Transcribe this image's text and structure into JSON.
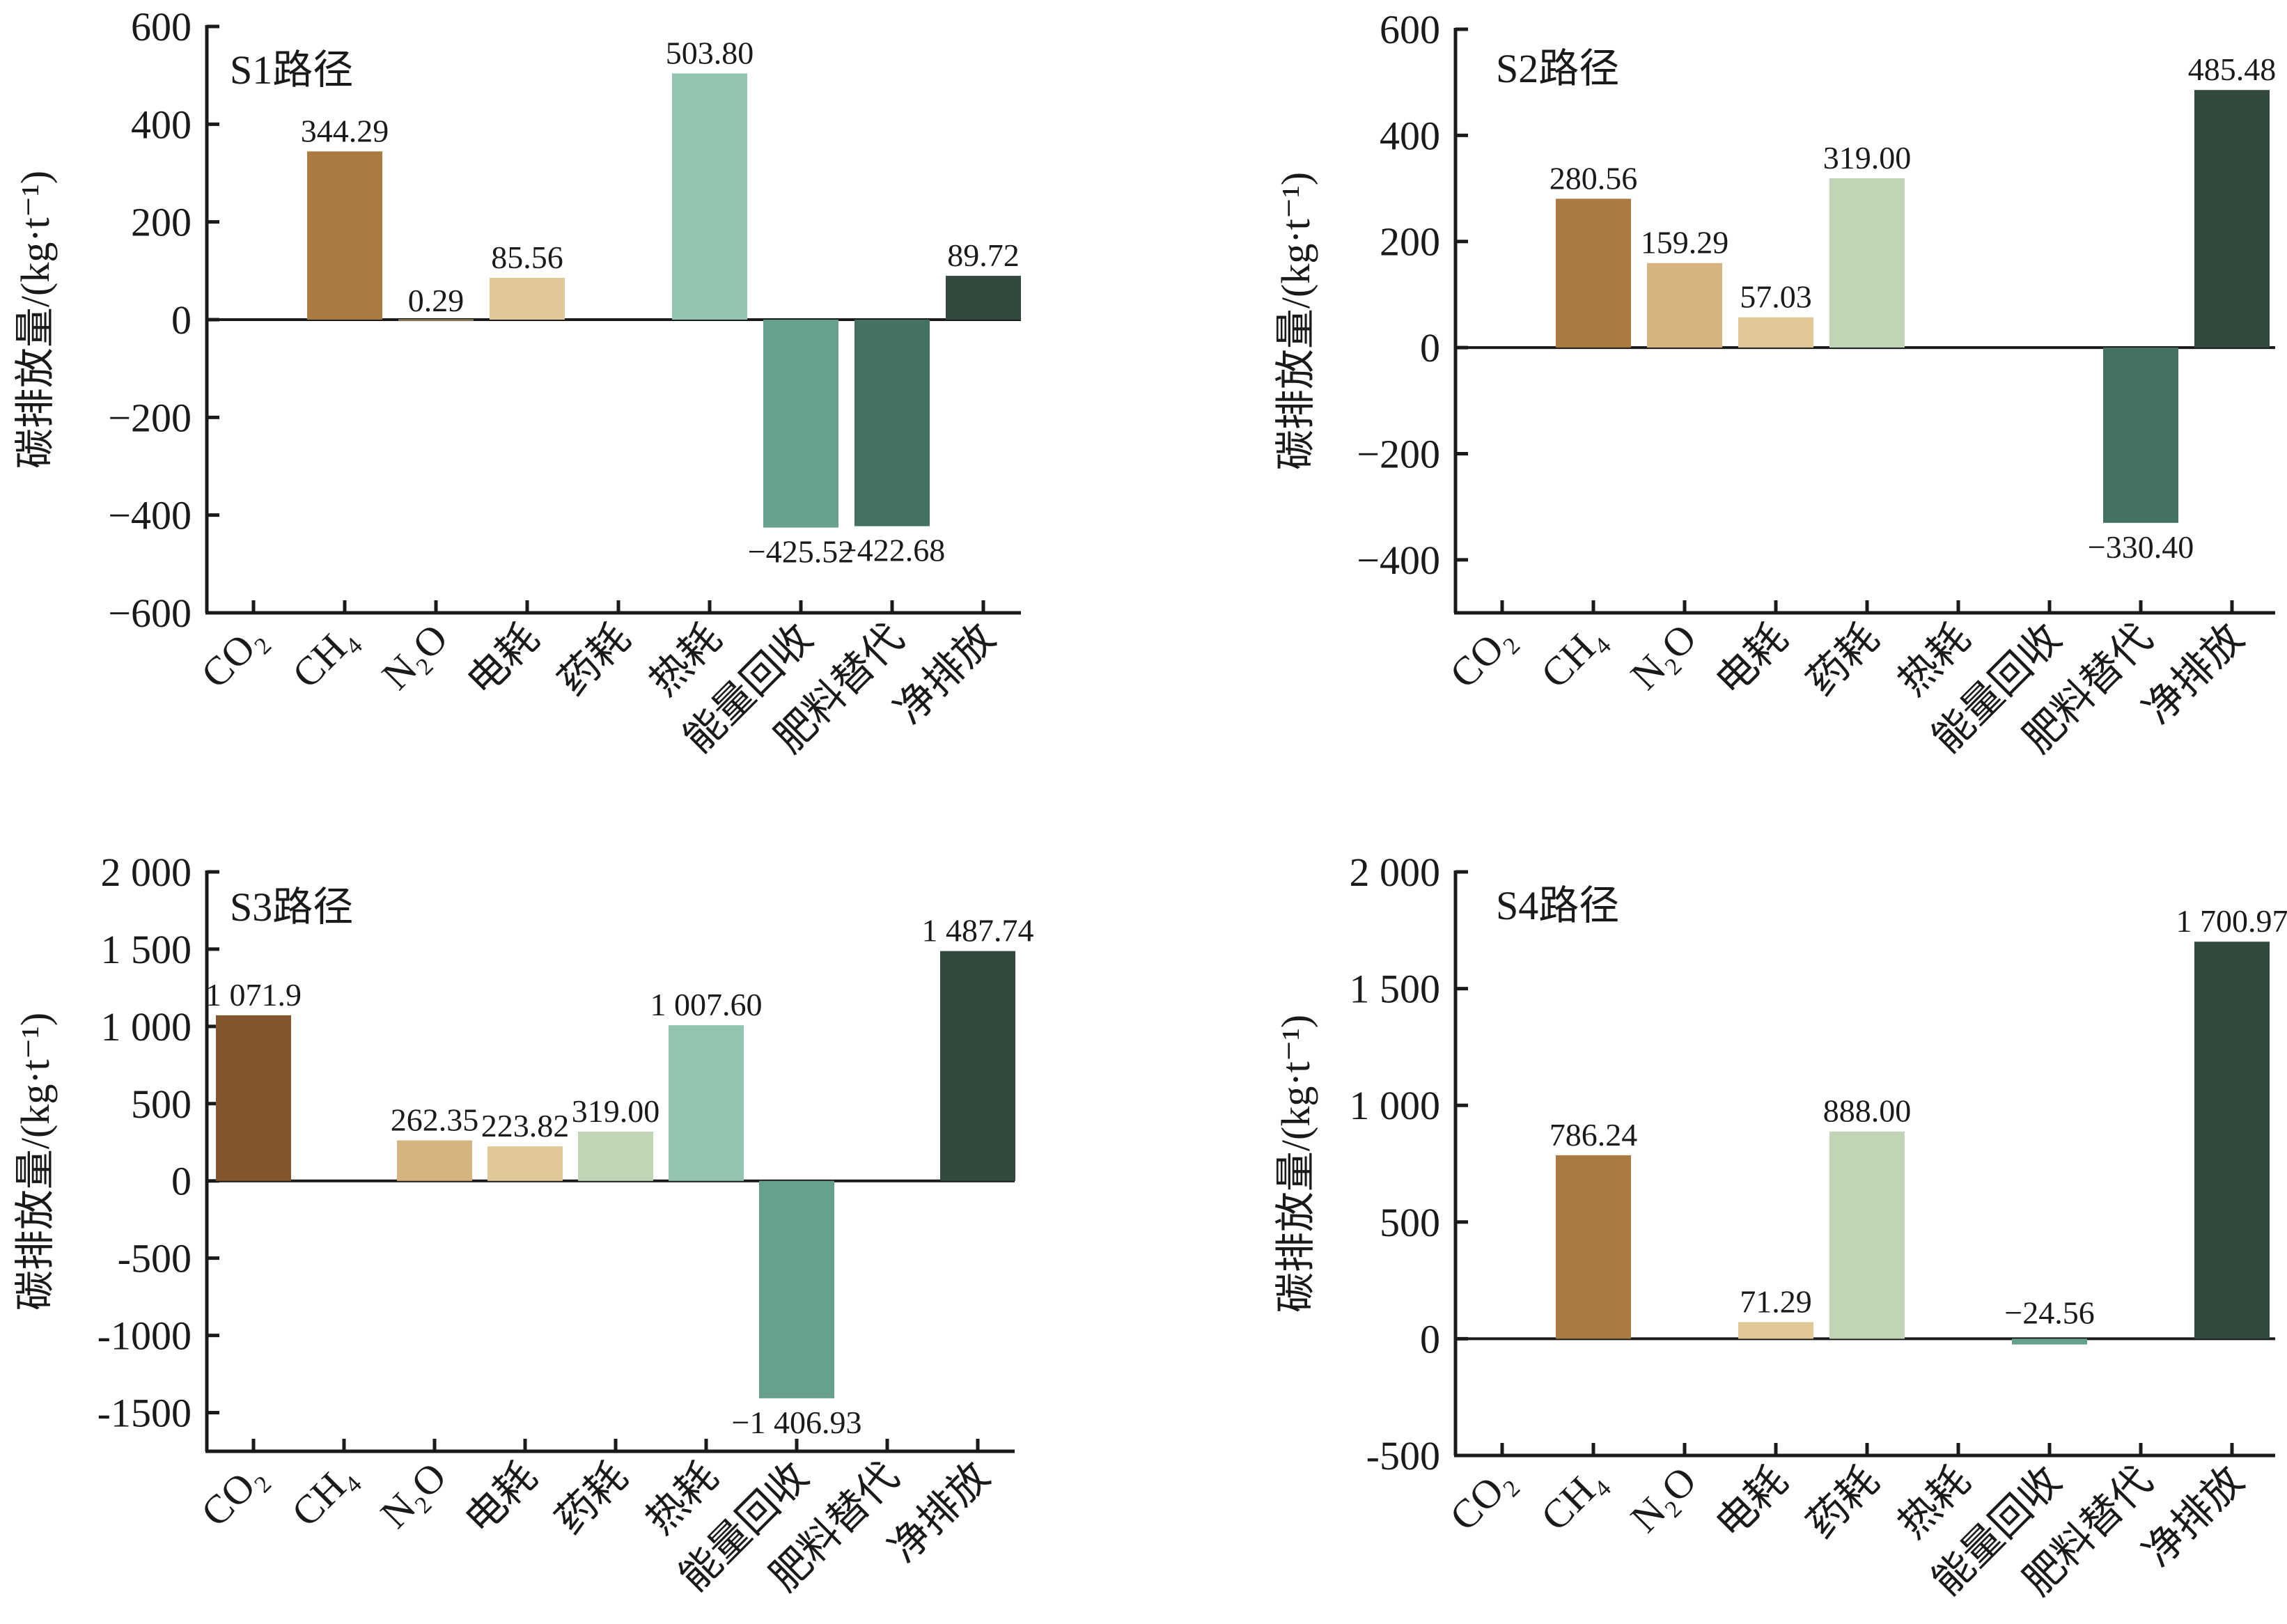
{
  "chart_data": [
    {
      "type": "bar",
      "title": "S1路径",
      "ylabel": "碳排放量/(kg·t⁻¹)",
      "xlabel": "",
      "categories": [
        "CO₂",
        "CH₄",
        "N₂O",
        "电耗",
        "药耗",
        "热耗",
        "能量回收",
        "肥料替代",
        "净排放"
      ],
      "values": [
        null,
        344.29,
        0.29,
        85.56,
        null,
        503.8,
        -425.52,
        -422.68,
        89.72
      ],
      "value_labels": [
        null,
        "344.29",
        "0.29",
        "85.56",
        null,
        "503.80",
        "−425.52",
        "−422.68",
        "89.72"
      ],
      "ylim": [
        -600,
        600
      ],
      "yticks": [
        600,
        400,
        200,
        0,
        -200,
        -400,
        -600
      ],
      "ytick_labels": [
        "600",
        "400",
        "200",
        "0",
        "−200",
        "−400",
        "−600"
      ],
      "grid": false,
      "legend": "none"
    },
    {
      "type": "bar",
      "title": "S2路径",
      "ylabel": "碳排放量/(kg·t⁻¹)",
      "xlabel": "",
      "categories": [
        "CO₂",
        "CH₄",
        "N₂O",
        "电耗",
        "药耗",
        "热耗",
        "能量回收",
        "肥料替代",
        "净排放"
      ],
      "values": [
        null,
        280.56,
        159.29,
        57.03,
        319.0,
        null,
        null,
        -330.4,
        485.48
      ],
      "value_labels": [
        null,
        "280.56",
        "159.29",
        "57.03",
        "319.00",
        null,
        null,
        "−330.40",
        "485.48"
      ],
      "ylim": [
        -500,
        600
      ],
      "yticks": [
        600,
        400,
        200,
        0,
        -200,
        -400
      ],
      "ytick_labels": [
        "600",
        "400",
        "200",
        "0",
        "−200",
        "−400"
      ],
      "grid": false,
      "legend": "none"
    },
    {
      "type": "bar",
      "title": "S3路径",
      "ylabel": "碳排放量/(kg·t⁻¹)",
      "xlabel": "",
      "categories": [
        "CO₂",
        "CH₄",
        "N₂O",
        "电耗",
        "药耗",
        "热耗",
        "能量回收",
        "肥料替代",
        "净排放"
      ],
      "values": [
        1071.9,
        null,
        262.35,
        223.82,
        319.0,
        1007.6,
        -1406.93,
        null,
        1487.74
      ],
      "value_labels": [
        "1 071.9",
        null,
        "262.35",
        "223.82",
        "319.00",
        "1 007.60",
        "−1 406.93",
        null,
        "1 487.74"
      ],
      "ylim": [
        -1750,
        2000
      ],
      "yticks": [
        2000,
        1500,
        1000,
        500,
        0,
        -500,
        -1000,
        -1500
      ],
      "ytick_labels": [
        "2 000",
        "1 500",
        "1 000",
        "500",
        "0",
        "-500",
        "-1000",
        "-1500"
      ],
      "grid": false,
      "legend": "none"
    },
    {
      "type": "bar",
      "title": "S4路径",
      "ylabel": "碳排放量/(kg·t⁻¹)",
      "xlabel": "",
      "categories": [
        "CO₂",
        "CH₄",
        "N₂O",
        "电耗",
        "药耗",
        "热耗",
        "能量回收",
        "肥料替代",
        "净排放"
      ],
      "values": [
        null,
        786.24,
        null,
        71.29,
        888.0,
        null,
        -24.56,
        null,
        1700.97
      ],
      "value_labels": [
        null,
        "786.24",
        null,
        "71.29",
        "888.00",
        null,
        "−24.56",
        null,
        "1 700.97"
      ],
      "ylim": [
        -500,
        2000
      ],
      "yticks": [
        2000,
        1500,
        1000,
        500,
        0,
        -500
      ],
      "ytick_labels": [
        "2 000",
        "1 500",
        "1 000",
        "500",
        "0",
        "-500"
      ],
      "grid": false,
      "legend": "none"
    }
  ],
  "palette": {
    "CO₂_S3": "#83562e",
    "CH₄": "#a97a42",
    "N₂O": "#d6b47f",
    "电耗": "#e1c898",
    "药耗": "#bfd5b5",
    "热耗": "#92c4b0",
    "能量回收": "#68a08e",
    "肥料替代": "#447262",
    "净排放": "#34493d"
  }
}
